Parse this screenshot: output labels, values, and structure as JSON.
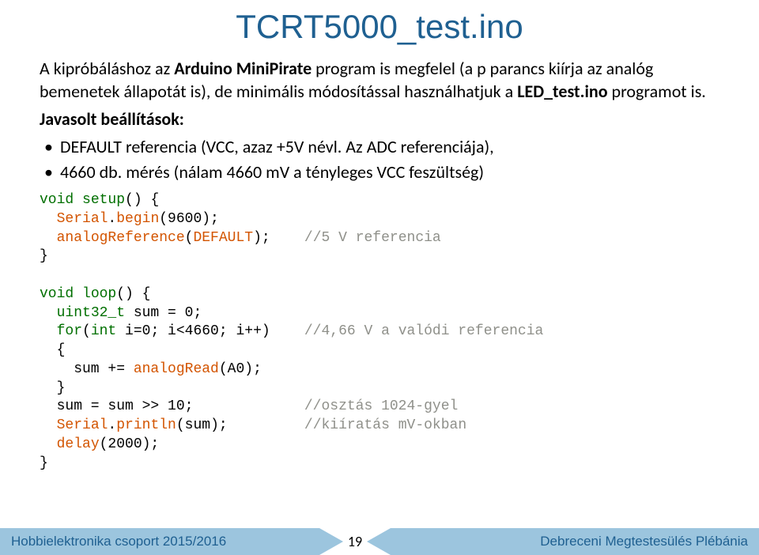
{
  "title": "TCRT5000_test.ino",
  "intro_html": "A kipróbáláshoz az <b>Arduino MiniPirate</b> program is megfelel (a p parancs kiírja az analóg bemenetek állapotát is), de minimális módosítással használhatjuk a <b>LED_test.ino</b> programot is.",
  "recommended_label": "Javasolt beállítások:",
  "bullets": [
    "DEFAULT referencia (VCC, azaz +5V névl. Az ADC referenciája),",
    "4660 db. mérés (nálam 4660 mV a tényleges VCC feszültség)"
  ],
  "code": {
    "setup": {
      "sig": "void setup() {",
      "l1": "  Serial.begin(9600);",
      "l2_call": "  analogReference(DEFAULT);",
      "l2_cmt": "//5 V referencia",
      "close": "}"
    },
    "loop": {
      "sig": "void loop() {",
      "l1": "  uint32_t sum = 0;",
      "l2_for": "  for(int i=0; i<4660; i++)",
      "l2_cmt": "//4,66 V a valódi referencia",
      "l3": "  {",
      "l4": "    sum += analogRead(A0);",
      "l5": "  }",
      "l6": "  sum = sum >> 10;",
      "l6_cmt": "//osztás 1024-gyel",
      "l7": "  Serial.println(sum);",
      "l7_cmt": "//kiíratás mV-okban",
      "l8": "  delay(2000);",
      "close": "}"
    }
  },
  "footer": {
    "left": "Hobbielektronika csoport 2015/2016",
    "page": "19",
    "right": "Debreceni Megtestesülés Plébánia"
  },
  "colors": {
    "title": "#1f6091",
    "footer_bg": "#9cc5de",
    "footer_text": "#1f6091",
    "code_keyword": "#006f00",
    "code_function": "#d35400",
    "code_comment": "#8f908a"
  }
}
